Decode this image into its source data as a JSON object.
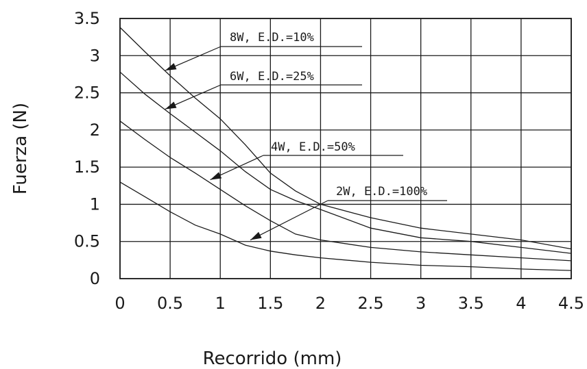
{
  "chart_data": {
    "type": "line",
    "title": "",
    "xlabel": "Recorrido (mm)",
    "ylabel": "Fuerza (N)",
    "xlim": [
      0,
      4.5
    ],
    "ylim": [
      0,
      3.5
    ],
    "x_ticks": [
      "0",
      "0.5",
      "1",
      "1.5",
      "2",
      "2.5",
      "3",
      "3.5",
      "4",
      "4.5"
    ],
    "y_ticks": [
      "0",
      "0.5",
      "1",
      "1.5",
      "2",
      "2.5",
      "3",
      "3.5"
    ],
    "grid": true,
    "legend": "none",
    "series": [
      {
        "name": "8W, E.D.=10%",
        "x": [
          0,
          0.25,
          0.5,
          0.75,
          1.0,
          1.25,
          1.5,
          1.75,
          2.0,
          2.5,
          3.0,
          3.5,
          4.0,
          4.5
        ],
        "y": [
          3.38,
          3.05,
          2.73,
          2.43,
          2.15,
          1.8,
          1.42,
          1.18,
          1.0,
          0.82,
          0.68,
          0.6,
          0.52,
          0.4
        ]
      },
      {
        "name": "6W, E.D.=25%",
        "x": [
          0,
          0.25,
          0.5,
          0.75,
          1.0,
          1.25,
          1.5,
          1.75,
          2.0,
          2.5,
          3.0,
          3.5,
          4.0,
          4.5
        ],
        "y": [
          2.78,
          2.48,
          2.22,
          1.97,
          1.72,
          1.44,
          1.2,
          1.05,
          0.93,
          0.68,
          0.55,
          0.5,
          0.42,
          0.34
        ]
      },
      {
        "name": "4W, E.D.=50%",
        "x": [
          0,
          0.25,
          0.5,
          0.75,
          1.0,
          1.25,
          1.5,
          1.75,
          2.0,
          2.5,
          3.0,
          3.5,
          4.0,
          4.5
        ],
        "y": [
          2.12,
          1.87,
          1.63,
          1.42,
          1.2,
          0.98,
          0.78,
          0.6,
          0.52,
          0.42,
          0.36,
          0.32,
          0.28,
          0.24
        ]
      },
      {
        "name": "2W, E.D.=100%",
        "x": [
          0,
          0.25,
          0.5,
          0.75,
          1.0,
          1.25,
          1.5,
          1.75,
          2.0,
          2.5,
          3.0,
          3.5,
          4.0,
          4.5
        ],
        "y": [
          1.3,
          1.1,
          0.9,
          0.72,
          0.6,
          0.45,
          0.37,
          0.32,
          0.28,
          0.22,
          0.18,
          0.16,
          0.13,
          0.11
        ]
      }
    ],
    "annotations": [
      {
        "text": "8W, E.D.=10%",
        "series": 0,
        "arrow_at": [
          0.45,
          2.8
        ]
      },
      {
        "text": "6W, E.D.=25%",
        "series": 1,
        "arrow_at": [
          0.45,
          2.28
        ]
      },
      {
        "text": "4W, E.D.=50%",
        "series": 2,
        "arrow_at": [
          0.9,
          1.33
        ]
      },
      {
        "text": "2W, E.D.=100%",
        "series": 3,
        "arrow_at": [
          1.3,
          0.52
        ]
      }
    ]
  }
}
